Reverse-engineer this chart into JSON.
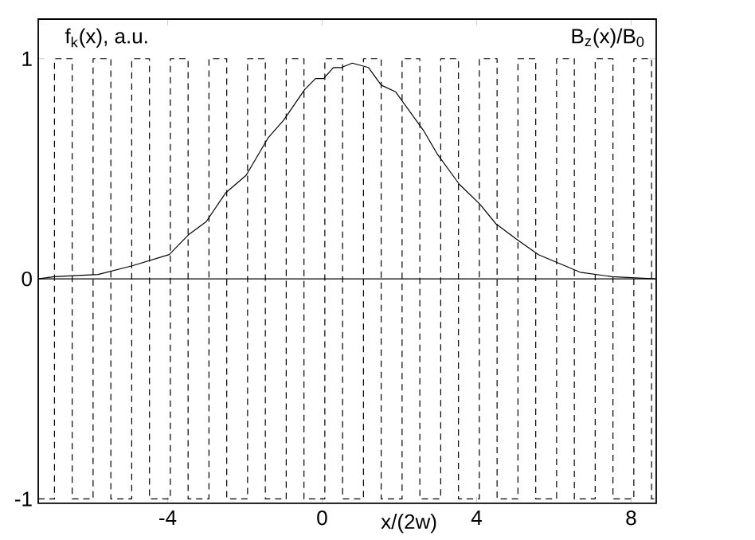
{
  "chart_data": {
    "type": "line",
    "xlabel": "x/(2w)",
    "annotations": [
      "f$_{k}$(x), a.u.",
      "B$_{z}$(x)/B$_{0}$"
    ],
    "xlim": [
      -7.35,
      8.65
    ],
    "ylim": [
      -1.02,
      1.18
    ],
    "xticks": [
      -4,
      0,
      4,
      8
    ],
    "yticks": [
      -1,
      0,
      1
    ],
    "ref_lines": [
      {
        "axis": "y",
        "value": 0,
        "color": "#000000"
      }
    ],
    "series": [
      {
        "color": "#000000",
        "line_style": "solid",
        "x": [
          -7.35,
          -6.93,
          -5.8,
          -4.9,
          -3.96,
          -3.46,
          -3.0,
          -2.5,
          -1.97,
          -1.4,
          -1.0,
          -0.45,
          -0.17,
          0.04,
          0.29,
          0.5,
          0.78,
          1.2,
          1.53,
          1.9,
          2.64,
          2.97,
          3.55,
          4.08,
          4.5,
          5.03,
          5.6,
          6.14,
          6.68,
          7.5,
          8.62
        ],
        "values": [
          0.0,
          0.01,
          0.02,
          0.06,
          0.11,
          0.2,
          0.26,
          0.39,
          0.47,
          0.64,
          0.72,
          0.86,
          0.91,
          0.91,
          0.96,
          0.96,
          0.98,
          0.96,
          0.88,
          0.85,
          0.67,
          0.57,
          0.43,
          0.34,
          0.25,
          0.18,
          0.11,
          0.07,
          0.03,
          0.01,
          0.0
        ]
      },
      {
        "type": "step",
        "color": "#000000",
        "line_style": "dashed",
        "x": [
          -7.35,
          -6.93,
          -6.47,
          -5.93,
          -5.47,
          -4.93,
          -4.47,
          -3.93,
          -3.47,
          -2.93,
          -2.47,
          -1.93,
          -1.47,
          -0.93,
          -0.47,
          0.07,
          0.53,
          1.07,
          1.53,
          2.07,
          2.53,
          3.07,
          3.53,
          4.07,
          4.53,
          5.07,
          5.53,
          6.07,
          6.53,
          7.07,
          7.53,
          8.07,
          8.53,
          8.65
        ],
        "values": [
          -1,
          1,
          -1,
          1,
          -1,
          1,
          -1,
          1,
          -1,
          1,
          -1,
          1,
          -1,
          1,
          -1,
          1,
          -1,
          1,
          -1,
          1,
          -1,
          1,
          -1,
          1,
          -1,
          1,
          -1,
          1,
          -1,
          1,
          -1,
          1,
          -1,
          -1
        ]
      }
    ]
  }
}
